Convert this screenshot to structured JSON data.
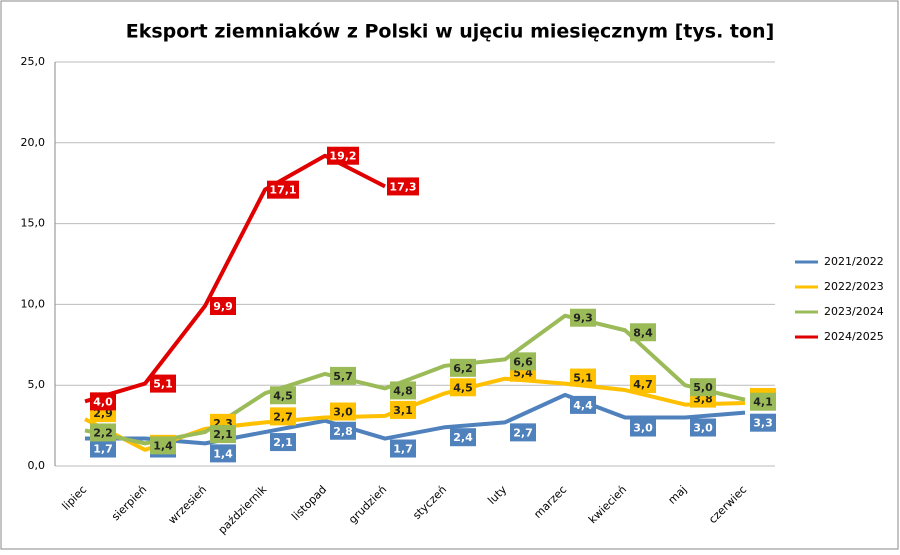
{
  "chart_data": {
    "type": "line",
    "title": "Eksport ziemniaków z Polski w ujęciu miesięcznym [tys. ton]",
    "categories": [
      "lipiec",
      "sierpień",
      "wrzesień",
      "październik",
      "listopad",
      "grudzień",
      "styczeń",
      "luty",
      "marzec",
      "kwiecień",
      "maj",
      "czerwiec"
    ],
    "series": [
      {
        "name": "2021/2022",
        "color": "#4f81bd",
        "values": [
          1.7,
          1.7,
          1.4,
          2.1,
          2.8,
          1.7,
          2.4,
          2.7,
          4.4,
          3.0,
          3.0,
          3.3
        ],
        "value_labels": [
          "1,7",
          "1,7",
          "1,4",
          "2,1",
          "2,8",
          "1,7",
          "2,4",
          "2,7",
          "4,4",
          "3,0",
          "3,0",
          "3,3"
        ]
      },
      {
        "name": "2022/2023",
        "color": "#ffc000",
        "values": [
          2.9,
          1.0,
          2.3,
          2.7,
          3.0,
          3.1,
          4.5,
          5.4,
          5.1,
          4.7,
          3.8,
          3.9
        ],
        "value_labels": [
          "2,9",
          "1,0",
          "2,3",
          "2,7",
          "3,0",
          "3,1",
          "4,5",
          "5,4",
          "5,1",
          "4,7",
          "3,8",
          "3,9"
        ]
      },
      {
        "name": "2023/2024",
        "color": "#9bbb59",
        "values": [
          2.2,
          1.4,
          2.1,
          4.5,
          5.7,
          4.8,
          6.2,
          6.6,
          9.3,
          8.4,
          5.0,
          4.1
        ],
        "value_labels": [
          "2,2",
          "1,4",
          "2,1",
          "4,5",
          "5,7",
          "4,8",
          "6,2",
          "6,6",
          "9,3",
          "8,4",
          "5,0",
          "4,1"
        ]
      },
      {
        "name": "2024/2025",
        "color": "#e00000",
        "values": [
          4.0,
          5.1,
          9.9,
          17.1,
          19.2,
          17.3,
          null,
          null,
          null,
          null,
          null,
          null
        ],
        "value_labels": [
          "4,0",
          "5,1",
          "9,9",
          "17,1",
          "19,2",
          "17,3",
          null,
          null,
          null,
          null,
          null,
          null
        ]
      }
    ],
    "ylim": [
      0,
      25
    ],
    "yticks": [
      {
        "value": 0,
        "label": "0,0"
      },
      {
        "value": 5,
        "label": "5,0"
      },
      {
        "value": 10,
        "label": "10,0"
      },
      {
        "value": 15,
        "label": "15,0"
      },
      {
        "value": 20,
        "label": "20,0"
      },
      {
        "value": 25,
        "label": "25,0"
      }
    ],
    "grid": true,
    "legend": "right"
  }
}
